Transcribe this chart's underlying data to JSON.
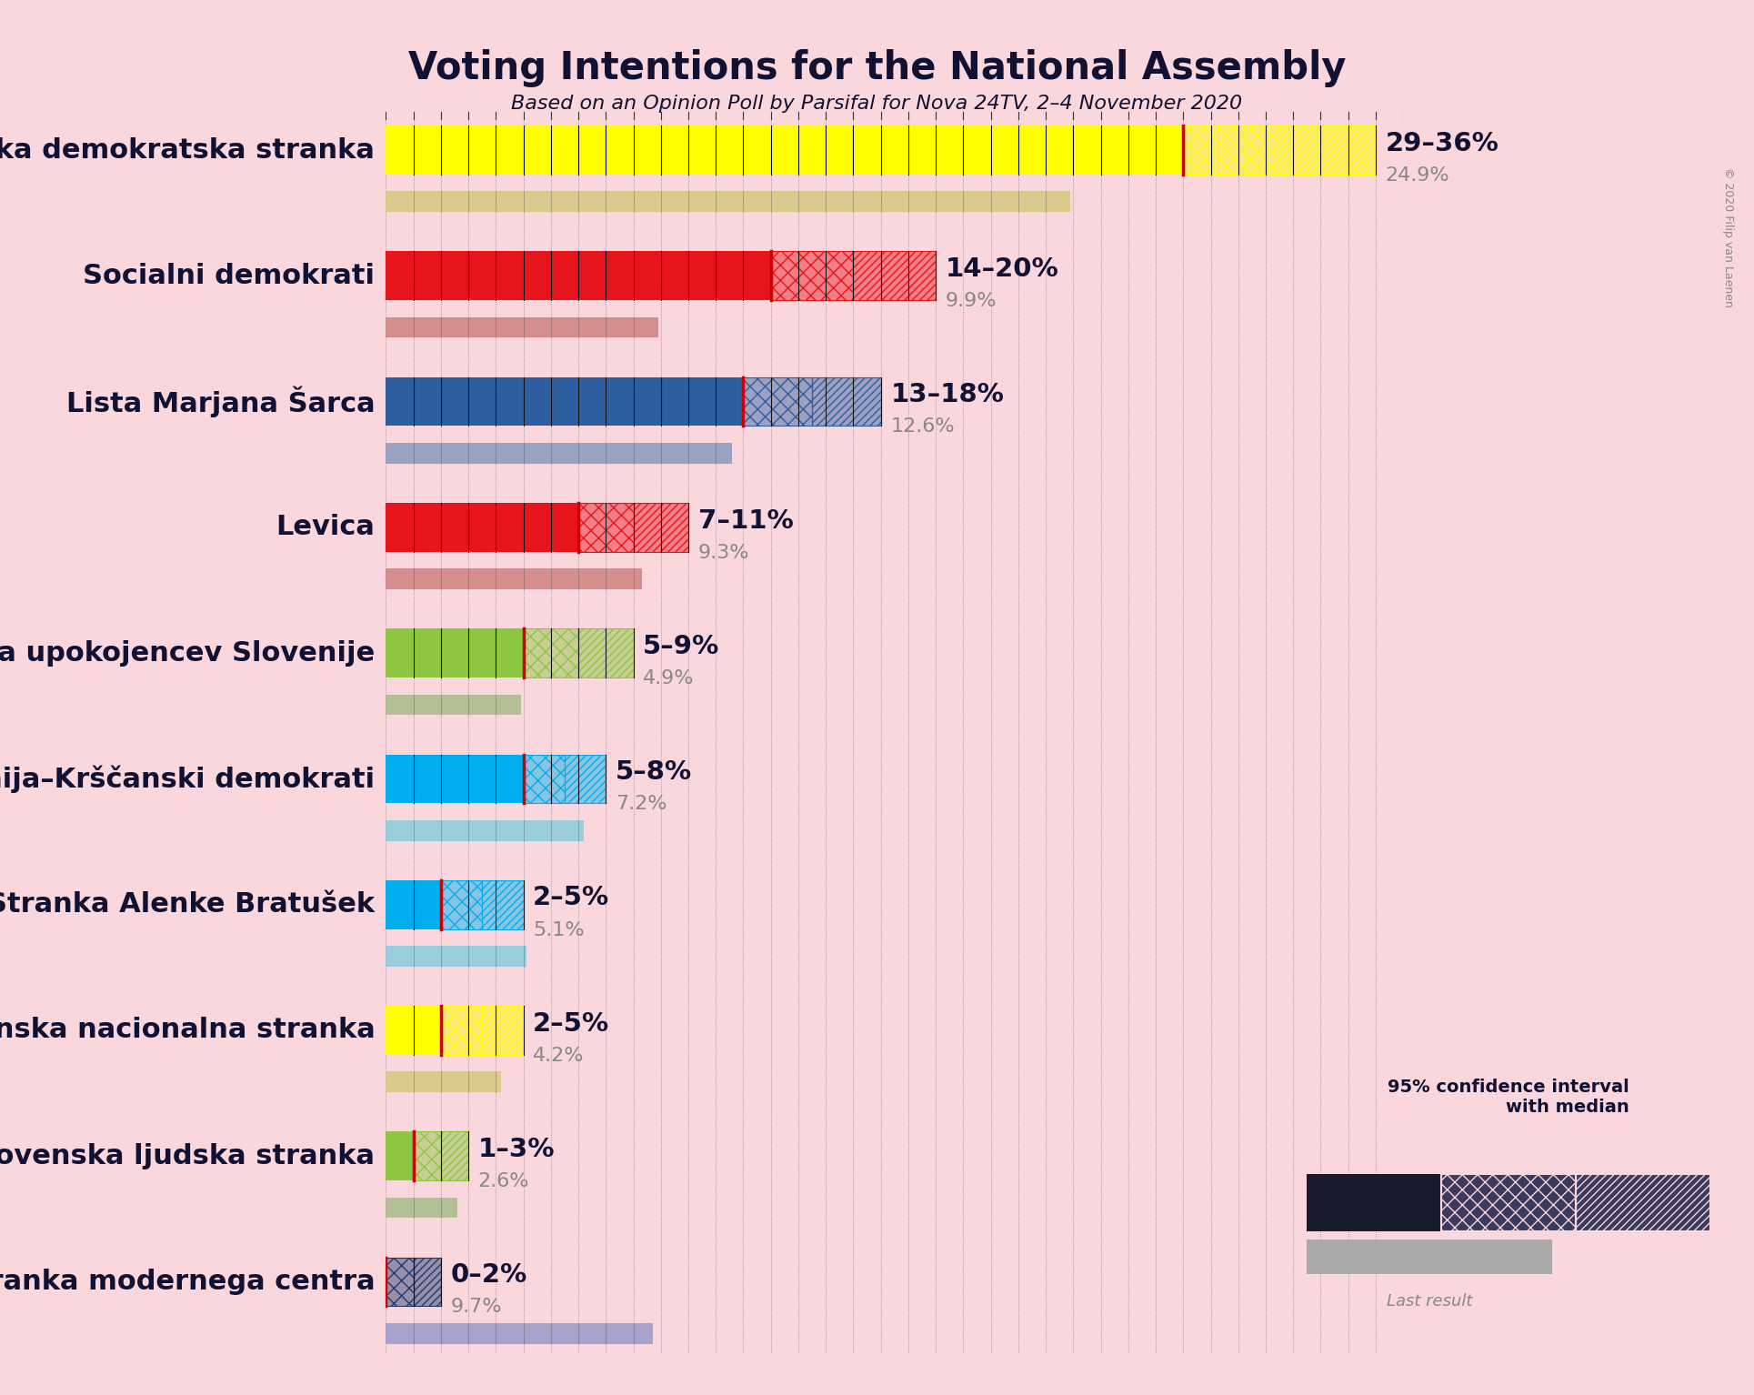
{
  "title": "Voting Intentions for the National Assembly",
  "subtitle": "Based on an Opinion Poll by Parsifal for Nova 24TV, 2–4 November 2020",
  "copyright": "© 2020 Filip van Laenen",
  "background_color": "#f9d7dc",
  "parties": [
    {
      "name": "Slovenska demokratska stranka",
      "ci_low": 29,
      "ci_high": 36,
      "last": 24.9,
      "color": "#FFFF00",
      "last_color": "#d4ca80"
    },
    {
      "name": "Socialni demokrati",
      "ci_low": 14,
      "ci_high": 20,
      "last": 9.9,
      "color": "#E8141C",
      "last_color": "#d08080"
    },
    {
      "name": "Lista Marjana Šarca",
      "ci_low": 13,
      "ci_high": 18,
      "last": 12.6,
      "color": "#2D5FA0",
      "last_color": "#8899bb"
    },
    {
      "name": "Levica",
      "ci_low": 7,
      "ci_high": 11,
      "last": 9.3,
      "color": "#E8141C",
      "last_color": "#d08080"
    },
    {
      "name": "Demokratična stranka upokojencev Slovenije",
      "ci_low": 5,
      "ci_high": 9,
      "last": 4.9,
      "color": "#8DC63F",
      "last_color": "#aabb88"
    },
    {
      "name": "Nova Slovenija–Krščanski demokrati",
      "ci_low": 5,
      "ci_high": 8,
      "last": 7.2,
      "color": "#00AEEF",
      "last_color": "#88ccdd"
    },
    {
      "name": "Stranka Alenke Bratušek",
      "ci_low": 2,
      "ci_high": 5,
      "last": 5.1,
      "color": "#00AEEF",
      "last_color": "#88ccdd"
    },
    {
      "name": "Slovenska nacionalna stranka",
      "ci_low": 2,
      "ci_high": 5,
      "last": 4.2,
      "color": "#FFFF00",
      "last_color": "#d4ca80"
    },
    {
      "name": "Slovenska ljudska stranka",
      "ci_low": 1,
      "ci_high": 3,
      "last": 2.6,
      "color": "#8DC63F",
      "last_color": "#aabb88"
    },
    {
      "name": "Stranka modernega centra",
      "ci_low": 0,
      "ci_high": 2,
      "last": 9.7,
      "color": "#1F3A6E",
      "last_color": "#9999cc"
    }
  ],
  "xlim_max": 37,
  "median_color": "#CC0000",
  "title_fontsize": 30,
  "subtitle_fontsize": 16,
  "name_fontsize": 22,
  "range_fontsize": 21,
  "last_fontsize": 16,
  "copyright_fontsize": 9
}
